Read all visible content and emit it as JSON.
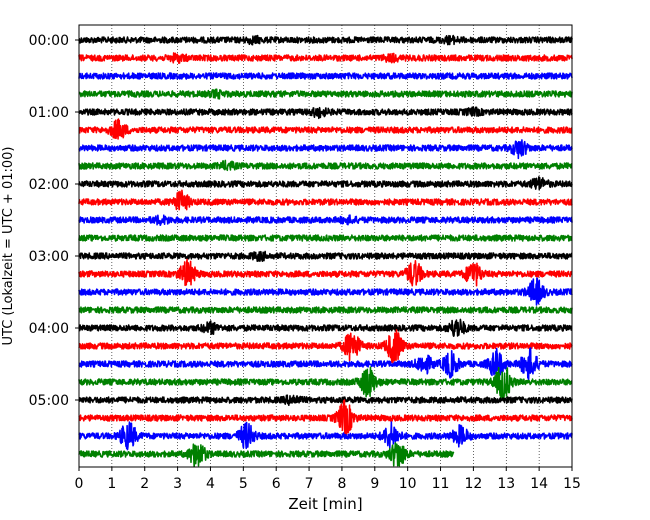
{
  "chart_data": {
    "type": "line",
    "title": "",
    "xlabel": "Zeit  [min]",
    "ylabel": "UTC (Lokalzeit = UTC + 01:00)",
    "xlim": [
      0,
      15
    ],
    "x_ticks": [
      "0",
      "1",
      "2",
      "3",
      "4",
      "5",
      "6",
      "7",
      "8",
      "9",
      "10",
      "11",
      "12",
      "13",
      "14",
      "15"
    ],
    "y_ticks": [
      "00:00",
      "01:00",
      "02:00",
      "03:00",
      "04:00",
      "05:00"
    ],
    "grid": "vertical dotted lines at each minute",
    "trace_interval_min": 15,
    "trace_colors": [
      "#000000",
      "#ff0000",
      "#0000ff",
      "#008000"
    ],
    "traces": [
      {
        "start": "00:00",
        "bursts": [
          [
            5.3,
            0.15
          ],
          [
            11.3,
            0.15
          ]
        ]
      },
      {
        "start": "00:15",
        "bursts": [
          [
            3.0,
            0.2
          ],
          [
            9.5,
            0.15
          ]
        ]
      },
      {
        "start": "00:30",
        "bursts": []
      },
      {
        "start": "00:45",
        "bursts": [
          [
            4.2,
            0.15
          ]
        ]
      },
      {
        "start": "01:00",
        "bursts": [
          [
            7.3,
            0.25
          ],
          [
            12.0,
            0.15
          ]
        ]
      },
      {
        "start": "01:15",
        "bursts": [
          [
            1.2,
            0.6
          ]
        ]
      },
      {
        "start": "01:30",
        "bursts": [
          [
            13.4,
            0.55
          ]
        ]
      },
      {
        "start": "01:45",
        "bursts": [
          [
            4.5,
            0.2
          ]
        ]
      },
      {
        "start": "02:00",
        "bursts": [
          [
            14.0,
            0.35
          ]
        ]
      },
      {
        "start": "02:15",
        "bursts": [
          [
            3.1,
            0.65
          ]
        ]
      },
      {
        "start": "02:30",
        "bursts": [
          [
            2.5,
            0.2
          ],
          [
            8.2,
            0.15
          ]
        ]
      },
      {
        "start": "02:45",
        "bursts": []
      },
      {
        "start": "03:00",
        "bursts": [
          [
            5.5,
            0.2
          ]
        ]
      },
      {
        "start": "03:15",
        "bursts": [
          [
            3.3,
            0.85
          ],
          [
            10.2,
            0.8
          ],
          [
            12.0,
            0.8
          ]
        ]
      },
      {
        "start": "03:30",
        "bursts": [
          [
            13.9,
            0.85
          ]
        ]
      },
      {
        "start": "03:45",
        "bursts": []
      },
      {
        "start": "04:00",
        "bursts": [
          [
            4.0,
            0.3
          ],
          [
            11.5,
            0.6
          ]
        ]
      },
      {
        "start": "04:15",
        "bursts": [
          [
            8.3,
            1.0
          ],
          [
            9.6,
            1.1
          ]
        ]
      },
      {
        "start": "04:30",
        "bursts": [
          [
            10.5,
            0.6
          ],
          [
            11.3,
            0.8
          ],
          [
            12.7,
            0.9
          ],
          [
            13.7,
            1.0
          ]
        ]
      },
      {
        "start": "04:45",
        "bursts": [
          [
            8.8,
            1.0
          ],
          [
            12.9,
            1.2
          ]
        ]
      },
      {
        "start": "05:00",
        "bursts": [
          [
            6.5,
            0.25
          ]
        ]
      },
      {
        "start": "05:15",
        "bursts": [
          [
            8.1,
            1.1
          ]
        ]
      },
      {
        "start": "05:30",
        "bursts": [
          [
            1.5,
            0.9
          ],
          [
            5.1,
            0.8
          ],
          [
            9.5,
            0.8
          ],
          [
            11.6,
            0.6
          ]
        ]
      },
      {
        "start": "05:45",
        "bursts": [
          [
            3.6,
            0.85
          ],
          [
            9.7,
            0.9
          ]
        ],
        "end_min": 11.4
      }
    ]
  }
}
